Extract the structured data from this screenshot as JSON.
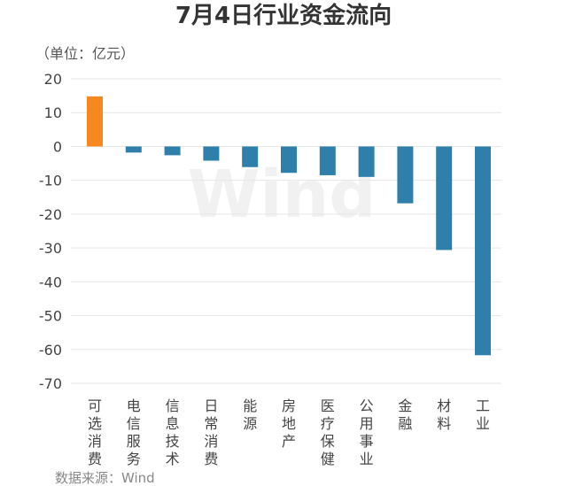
{
  "title": "7月4日行业资金流向",
  "unit_label": "（单位：亿元）",
  "source": "数据来源：Wind",
  "watermark": "Wind",
  "colors": {
    "positive": "#f5891f",
    "negative": "#2e7faa",
    "grid": "#e6e6e6",
    "text": "#444444"
  },
  "chart_data": {
    "type": "bar",
    "title": "7月4日行业资金流向",
    "ylabel": "（单位：亿元）",
    "xlabel": "",
    "categories": [
      "可选消费",
      "电信服务",
      "信息技术",
      "日常消费",
      "能源",
      "房地产",
      "医疗保健",
      "公用事业",
      "金融",
      "材料",
      "工业"
    ],
    "values": [
      14.8,
      -1.8,
      -2.6,
      -4.2,
      -6.1,
      -7.8,
      -8.5,
      -9.0,
      -16.8,
      -30.6,
      -61.7
    ],
    "ylim": [
      -70,
      20
    ],
    "yticks": [
      20,
      10,
      0,
      -10,
      -20,
      -30,
      -40,
      -50,
      -60,
      -70
    ],
    "grid": true,
    "legend": "none"
  }
}
